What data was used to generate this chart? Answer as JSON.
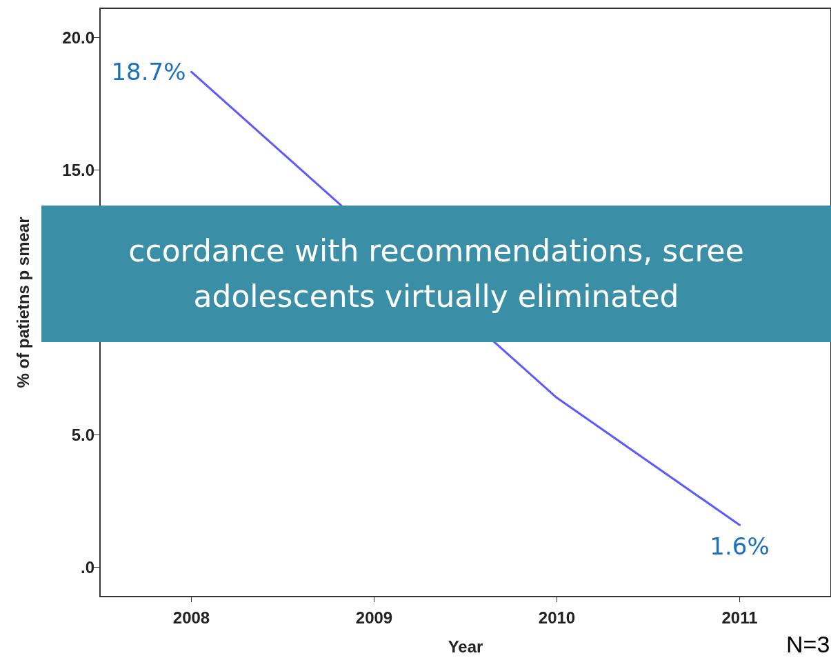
{
  "chart_data": {
    "type": "line",
    "xlabel": "Year",
    "ylabel": "% of patietns p smear",
    "categories": [
      "2008",
      "2009",
      "2010",
      "2011"
    ],
    "series": [
      {
        "color": "#5a5aff",
        "values": [
          18.7,
          null,
          6.4,
          1.6
        ],
        "value_labels": [
          "18.7%",
          null,
          null,
          "1.6%"
        ]
      }
    ],
    "ylim": [
      -1.1,
      21.1
    ],
    "yticks": [
      {
        "value": 0,
        "label": ".0"
      },
      {
        "value": 5,
        "label": "5.0"
      },
      {
        "value": 15,
        "label": "15.0"
      },
      {
        "value": 20,
        "label": "20.0"
      }
    ],
    "grid": false,
    "marker": "none",
    "line_style": "solid",
    "annotations": [
      "ccordance with recommendations, scree\nadolescents virtually eliminated",
      "N=3"
    ]
  }
}
